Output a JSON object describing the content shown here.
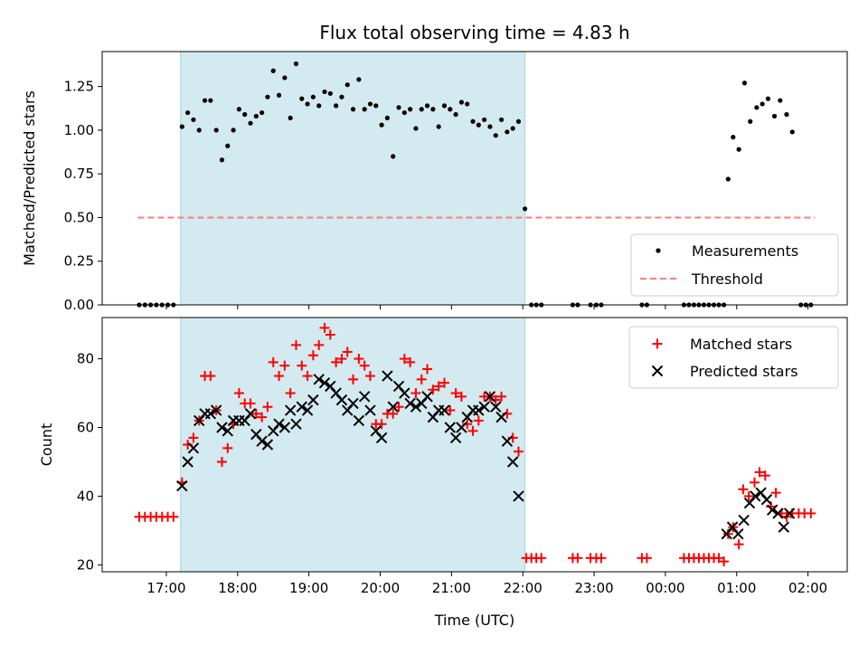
{
  "chart_data": {
    "type": "scatter",
    "title": "Flux total observing time = 4.83 h",
    "xlabel": "Time (UTC)",
    "x_ticks": [
      {
        "h": 17,
        "label": "17:00"
      },
      {
        "h": 18,
        "label": "18:00"
      },
      {
        "h": 19,
        "label": "19:00"
      },
      {
        "h": 20,
        "label": "20:00"
      },
      {
        "h": 21,
        "label": "21:00"
      },
      {
        "h": 22,
        "label": "22:00"
      },
      {
        "h": 23,
        "label": "23:00"
      },
      {
        "h": 24,
        "label": "00:00"
      },
      {
        "h": 25,
        "label": "01:00"
      },
      {
        "h": 26,
        "label": "02:00"
      }
    ],
    "xlim": [
      16.1,
      26.55
    ],
    "shaded_interval": {
      "start": 17.2,
      "end": 22.03,
      "color": "#d3eaf0",
      "edge": "#a8d4de"
    },
    "top_panel": {
      "ylabel": "Matched/Predicted stars",
      "ylim": [
        0,
        1.45
      ],
      "y_ticks": [
        {
          "v": 0.0,
          "label": "0.00"
        },
        {
          "v": 0.25,
          "label": "0.25"
        },
        {
          "v": 0.5,
          "label": "0.50"
        },
        {
          "v": 0.75,
          "label": "0.75"
        },
        {
          "v": 1.0,
          "label": "1.00"
        },
        {
          "v": 1.25,
          "label": "1.25"
        }
      ],
      "threshold": {
        "value": 0.5,
        "x_start": 16.6,
        "x_end": 26.1,
        "color": "#ff7b7b"
      },
      "legend": [
        {
          "label": "Measurements",
          "marker": "dot",
          "color": "#000000"
        },
        {
          "label": "Threshold",
          "marker": "dashed-line",
          "color": "#ff7b7b"
        }
      ],
      "measurements": [
        [
          16.62,
          0
        ],
        [
          16.7,
          0
        ],
        [
          16.78,
          0
        ],
        [
          16.86,
          0
        ],
        [
          16.94,
          0
        ],
        [
          17.02,
          0
        ],
        [
          17.1,
          0
        ],
        [
          17.22,
          1.02
        ],
        [
          17.3,
          1.1
        ],
        [
          17.38,
          1.06
        ],
        [
          17.46,
          1.0
        ],
        [
          17.54,
          1.17
        ],
        [
          17.62,
          1.17
        ],
        [
          17.7,
          1.0
        ],
        [
          17.78,
          0.83
        ],
        [
          17.86,
          0.91
        ],
        [
          17.94,
          1.0
        ],
        [
          18.02,
          1.12
        ],
        [
          18.1,
          1.09
        ],
        [
          18.18,
          1.04
        ],
        [
          18.26,
          1.08
        ],
        [
          18.34,
          1.1
        ],
        [
          18.42,
          1.19
        ],
        [
          18.5,
          1.34
        ],
        [
          18.58,
          1.2
        ],
        [
          18.66,
          1.3
        ],
        [
          18.74,
          1.07
        ],
        [
          18.82,
          1.38
        ],
        [
          18.9,
          1.18
        ],
        [
          18.98,
          1.15
        ],
        [
          19.06,
          1.19
        ],
        [
          19.14,
          1.14
        ],
        [
          19.22,
          1.22
        ],
        [
          19.3,
          1.21
        ],
        [
          19.38,
          1.14
        ],
        [
          19.46,
          1.19
        ],
        [
          19.54,
          1.26
        ],
        [
          19.62,
          1.12
        ],
        [
          19.7,
          1.29
        ],
        [
          19.78,
          1.12
        ],
        [
          19.86,
          1.15
        ],
        [
          19.94,
          1.14
        ],
        [
          20.02,
          1.03
        ],
        [
          20.1,
          1.07
        ],
        [
          20.18,
          0.85
        ],
        [
          20.26,
          1.13
        ],
        [
          20.34,
          1.1
        ],
        [
          20.42,
          1.12
        ],
        [
          20.5,
          1.01
        ],
        [
          20.58,
          1.12
        ],
        [
          20.66,
          1.14
        ],
        [
          20.74,
          1.12
        ],
        [
          20.82,
          1.02
        ],
        [
          20.9,
          1.14
        ],
        [
          20.98,
          1.12
        ],
        [
          21.06,
          1.09
        ],
        [
          21.14,
          1.16
        ],
        [
          21.22,
          1.15
        ],
        [
          21.3,
          1.05
        ],
        [
          21.38,
          1.03
        ],
        [
          21.46,
          1.06
        ],
        [
          21.54,
          1.02
        ],
        [
          21.62,
          0.97
        ],
        [
          21.7,
          1.06
        ],
        [
          21.78,
          0.99
        ],
        [
          21.86,
          1.01
        ],
        [
          21.94,
          1.05
        ],
        [
          22.03,
          0.55
        ],
        [
          22.12,
          0
        ],
        [
          22.19,
          0
        ],
        [
          22.26,
          0
        ],
        [
          22.7,
          0
        ],
        [
          22.77,
          0
        ],
        [
          22.95,
          0
        ],
        [
          23.03,
          0
        ],
        [
          23.1,
          0
        ],
        [
          23.67,
          0
        ],
        [
          23.74,
          0
        ],
        [
          24.26,
          0
        ],
        [
          24.33,
          0
        ],
        [
          24.4,
          0
        ],
        [
          24.47,
          0
        ],
        [
          24.54,
          0
        ],
        [
          24.61,
          0
        ],
        [
          24.68,
          0
        ],
        [
          24.75,
          0
        ],
        [
          24.82,
          0
        ],
        [
          24.88,
          0.72
        ],
        [
          24.95,
          0.96
        ],
        [
          25.03,
          0.89
        ],
        [
          25.11,
          1.27
        ],
        [
          25.19,
          1.05
        ],
        [
          25.28,
          1.13
        ],
        [
          25.36,
          1.15
        ],
        [
          25.44,
          1.18
        ],
        [
          25.53,
          1.08
        ],
        [
          25.61,
          1.17
        ],
        [
          25.7,
          1.09
        ],
        [
          25.78,
          0.99
        ],
        [
          25.9,
          0
        ],
        [
          25.97,
          0
        ],
        [
          26.04,
          0
        ]
      ]
    },
    "bottom_panel": {
      "ylabel": "Count",
      "ylim": [
        18,
        92
      ],
      "y_ticks": [
        {
          "v": 20,
          "label": "20"
        },
        {
          "v": 40,
          "label": "40"
        },
        {
          "v": 60,
          "label": "60"
        },
        {
          "v": 80,
          "label": "80"
        }
      ],
      "legend": [
        {
          "label": "Matched stars",
          "marker": "plus",
          "color": "#ff0000"
        },
        {
          "label": "Predicted stars",
          "marker": "x",
          "color": "#000000"
        }
      ],
      "series": [
        {
          "name": "Matched stars",
          "marker": "plus",
          "color": "#ff0000",
          "points": [
            [
              16.62,
              34
            ],
            [
              16.7,
              34
            ],
            [
              16.78,
              34
            ],
            [
              16.86,
              34
            ],
            [
              16.94,
              34
            ],
            [
              17.02,
              34
            ],
            [
              17.1,
              34
            ],
            [
              17.22,
              44
            ],
            [
              17.3,
              55
            ],
            [
              17.38,
              57
            ],
            [
              17.46,
              62
            ],
            [
              17.54,
              75
            ],
            [
              17.62,
              75
            ],
            [
              17.7,
              65
            ],
            [
              17.78,
              50
            ],
            [
              17.86,
              54
            ],
            [
              17.94,
              61
            ],
            [
              18.02,
              70
            ],
            [
              18.1,
              67
            ],
            [
              18.18,
              67
            ],
            [
              18.26,
              64
            ],
            [
              18.34,
              63
            ],
            [
              18.42,
              66
            ],
            [
              18.5,
              79
            ],
            [
              18.58,
              75
            ],
            [
              18.66,
              78
            ],
            [
              18.74,
              70
            ],
            [
              18.82,
              84
            ],
            [
              18.9,
              78
            ],
            [
              18.98,
              75
            ],
            [
              19.06,
              81
            ],
            [
              19.14,
              84
            ],
            [
              19.22,
              89
            ],
            [
              19.3,
              87
            ],
            [
              19.38,
              79
            ],
            [
              19.46,
              80
            ],
            [
              19.54,
              82
            ],
            [
              19.62,
              74
            ],
            [
              19.7,
              80
            ],
            [
              19.78,
              78
            ],
            [
              19.86,
              75
            ],
            [
              19.94,
              61
            ],
            [
              20.02,
              61
            ],
            [
              20.1,
              64
            ],
            [
              20.18,
              64
            ],
            [
              20.26,
              66
            ],
            [
              20.34,
              80
            ],
            [
              20.42,
              79
            ],
            [
              20.5,
              70
            ],
            [
              20.58,
              74
            ],
            [
              20.66,
              77
            ],
            [
              20.74,
              71
            ],
            [
              20.82,
              72
            ],
            [
              20.9,
              73
            ],
            [
              20.98,
              65
            ],
            [
              21.06,
              70
            ],
            [
              21.14,
              69
            ],
            [
              21.22,
              61
            ],
            [
              21.3,
              59
            ],
            [
              21.38,
              62
            ],
            [
              21.46,
              69
            ],
            [
              21.54,
              69
            ],
            [
              21.62,
              68
            ],
            [
              21.7,
              69
            ],
            [
              21.78,
              64
            ],
            [
              21.86,
              57
            ],
            [
              21.94,
              53
            ],
            [
              22.05,
              22
            ],
            [
              22.12,
              22
            ],
            [
              22.19,
              22
            ],
            [
              22.26,
              22
            ],
            [
              22.7,
              22
            ],
            [
              22.77,
              22
            ],
            [
              22.95,
              22
            ],
            [
              23.03,
              22
            ],
            [
              23.1,
              22
            ],
            [
              23.67,
              22
            ],
            [
              23.74,
              22
            ],
            [
              24.26,
              22
            ],
            [
              24.33,
              22
            ],
            [
              24.4,
              22
            ],
            [
              24.47,
              22
            ],
            [
              24.54,
              22
            ],
            [
              24.61,
              22
            ],
            [
              24.68,
              22
            ],
            [
              24.75,
              22
            ],
            [
              24.82,
              21
            ],
            [
              24.88,
              29
            ],
            [
              24.95,
              31
            ],
            [
              25.03,
              26
            ],
            [
              25.09,
              42
            ],
            [
              25.17,
              40
            ],
            [
              25.25,
              44
            ],
            [
              25.32,
              47
            ],
            [
              25.4,
              46
            ],
            [
              25.48,
              37
            ],
            [
              25.55,
              41
            ],
            [
              25.63,
              35
            ],
            [
              25.7,
              34
            ],
            [
              25.78,
              35
            ],
            [
              25.87,
              35
            ],
            [
              25.95,
              35
            ],
            [
              26.04,
              35
            ]
          ]
        },
        {
          "name": "Predicted stars",
          "marker": "x",
          "color": "#000000",
          "points": [
            [
              17.22,
              43
            ],
            [
              17.3,
              50
            ],
            [
              17.38,
              54
            ],
            [
              17.46,
              62
            ],
            [
              17.54,
              64
            ],
            [
              17.62,
              64
            ],
            [
              17.7,
              65
            ],
            [
              17.78,
              60
            ],
            [
              17.86,
              59
            ],
            [
              17.94,
              62
            ],
            [
              18.02,
              62
            ],
            [
              18.1,
              62
            ],
            [
              18.18,
              64
            ],
            [
              18.26,
              58
            ],
            [
              18.34,
              56
            ],
            [
              18.42,
              55
            ],
            [
              18.5,
              59
            ],
            [
              18.58,
              61
            ],
            [
              18.66,
              60
            ],
            [
              18.74,
              65
            ],
            [
              18.82,
              61
            ],
            [
              18.9,
              66
            ],
            [
              18.98,
              65
            ],
            [
              19.06,
              68
            ],
            [
              19.14,
              74
            ],
            [
              19.22,
              73
            ],
            [
              19.3,
              72
            ],
            [
              19.38,
              70
            ],
            [
              19.46,
              68
            ],
            [
              19.54,
              65
            ],
            [
              19.62,
              67
            ],
            [
              19.7,
              62
            ],
            [
              19.78,
              69
            ],
            [
              19.86,
              65
            ],
            [
              19.94,
              59
            ],
            [
              20.02,
              57
            ],
            [
              20.1,
              75
            ],
            [
              20.18,
              66
            ],
            [
              20.26,
              72
            ],
            [
              20.34,
              70
            ],
            [
              20.42,
              67
            ],
            [
              20.5,
              66
            ],
            [
              20.58,
              67
            ],
            [
              20.66,
              69
            ],
            [
              20.74,
              63
            ],
            [
              20.82,
              65
            ],
            [
              20.9,
              65
            ],
            [
              20.98,
              60
            ],
            [
              21.06,
              57
            ],
            [
              21.14,
              60
            ],
            [
              21.22,
              63
            ],
            [
              21.3,
              65
            ],
            [
              21.38,
              65
            ],
            [
              21.46,
              66
            ],
            [
              21.54,
              69
            ],
            [
              21.62,
              66
            ],
            [
              21.7,
              63
            ],
            [
              21.78,
              56
            ],
            [
              21.86,
              50
            ],
            [
              21.94,
              40
            ],
            [
              24.86,
              29
            ],
            [
              24.94,
              31
            ],
            [
              25.02,
              29
            ],
            [
              25.1,
              33
            ],
            [
              25.18,
              38
            ],
            [
              25.26,
              40
            ],
            [
              25.34,
              41
            ],
            [
              25.42,
              39
            ],
            [
              25.5,
              36
            ],
            [
              25.58,
              35
            ],
            [
              25.66,
              31
            ],
            [
              25.74,
              35
            ]
          ]
        }
      ]
    }
  }
}
